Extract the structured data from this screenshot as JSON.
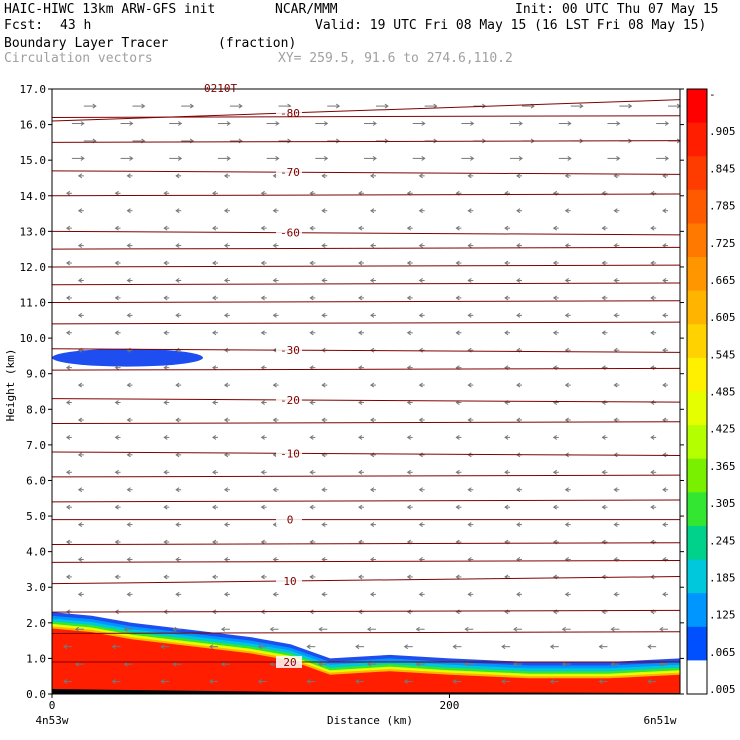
{
  "header": {
    "model": "HAIC-HIWC 13km ARW-GFS init",
    "org": "NCAR/MMM",
    "init": "Init: 00 UTC Thu 07 May 15",
    "fcst_label": "Fcst:",
    "fcst_value": "43 h",
    "valid": "Valid: 19 UTC Fri 08 May 15 (16 LST Fri 08 May 15)",
    "field_name": "Boundary Layer Tracer",
    "field_units": "(fraction)",
    "vector_label": "Circulation vectors",
    "xy_text": "XY= 259.5, 91.6 to 274.6,110.2",
    "top_label": "0210T"
  },
  "colors": {
    "contour": "#800000",
    "tracer_high": "#ff1e00",
    "tracer_low_blue": "#1f4ef0",
    "vector": "#777777"
  },
  "chart_data": {
    "type": "heatmap",
    "ylabel": "Height (km)",
    "xlabel": "Distance (km)",
    "x_left_label": "4n53w",
    "x_right_label": "6n51w",
    "xlim": [
      0,
      316
    ],
    "ylim": [
      0,
      17
    ],
    "x_ticks": [
      0,
      200
    ],
    "y_ticks": [
      "0.0",
      "1.0",
      "2.0",
      "3.0",
      "4.0",
      "5.0",
      "6.0",
      "7.0",
      "8.0",
      "9.0",
      "10.0",
      "11.0",
      "12.0",
      "13.0",
      "14.0",
      "15.0",
      "16.0",
      "17.0"
    ],
    "colorbar_labels": [
      "-",
      ".905",
      ".845",
      ".785",
      ".725",
      ".665",
      ".605",
      ".545",
      ".485",
      ".425",
      ".365",
      ".305",
      ".245",
      ".185",
      ".125",
      ".065",
      ".005"
    ],
    "colorbar_colors": [
      "#ff0000",
      "#ff1e00",
      "#ff3c00",
      "#ff5a00",
      "#ff7800",
      "#ff9600",
      "#ffb400",
      "#ffd200",
      "#fff000",
      "#e6ff00",
      "#b4ff00",
      "#78f000",
      "#32e632",
      "#00d28c",
      "#00c8dc",
      "#0096ff",
      "#0050ff",
      "#ffffff"
    ],
    "contours": [
      {
        "label": "-80",
        "heights": [
          16.1,
          16.7
        ]
      },
      {
        "label": "-70",
        "heights": [
          14.7,
          14.6
        ]
      },
      {
        "label": "-60",
        "heights": [
          13.0,
          12.9
        ]
      },
      {
        "label": "-30",
        "heights": [
          9.7,
          9.6
        ]
      },
      {
        "label": "-20",
        "heights": [
          8.3,
          8.2
        ]
      },
      {
        "label": "-10",
        "heights": [
          6.8,
          6.7
        ]
      },
      {
        "label": "0",
        "heights": [
          4.9,
          4.9
        ]
      },
      {
        "label": "10",
        "heights": [
          3.1,
          3.3
        ]
      },
      {
        "label": "20",
        "heights": [
          0.9,
          0.9
        ]
      }
    ],
    "boundary_layer_top": [
      {
        "x": 0,
        "top": 2.3
      },
      {
        "x": 20,
        "top": 2.2
      },
      {
        "x": 40,
        "top": 2.0
      },
      {
        "x": 70,
        "top": 1.8
      },
      {
        "x": 100,
        "top": 1.6
      },
      {
        "x": 120,
        "top": 1.4
      },
      {
        "x": 140,
        "top": 1.0
      },
      {
        "x": 170,
        "top": 1.1
      },
      {
        "x": 200,
        "top": 1.0
      },
      {
        "x": 240,
        "top": 0.9
      },
      {
        "x": 280,
        "top": 0.9
      },
      {
        "x": 316,
        "top": 1.0
      }
    ],
    "upper_patch": {
      "x_start": 0,
      "x_end": 76,
      "y_bottom": 9.2,
      "y_top": 9.7,
      "value": 0.035
    }
  }
}
